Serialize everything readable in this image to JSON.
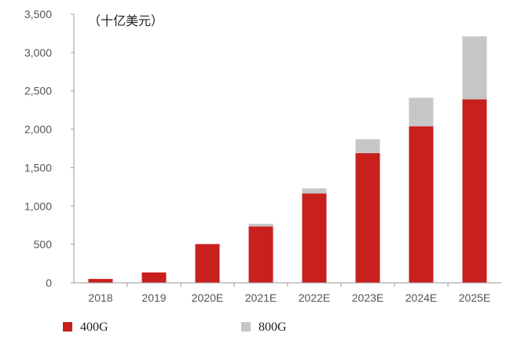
{
  "chart_data": {
    "type": "bar",
    "stacked": true,
    "unit_label": "（十亿美元）",
    "categories": [
      "2018",
      "2019",
      "2020E",
      "2021E",
      "2022E",
      "2023E",
      "2024E",
      "2025E"
    ],
    "series": [
      {
        "name": "400G",
        "color": "#c8201e",
        "values": [
          50,
          135,
          505,
          735,
          1165,
          1690,
          2040,
          2390
        ]
      },
      {
        "name": "800G",
        "color": "#c6c6c6",
        "values": [
          0,
          0,
          0,
          35,
          65,
          180,
          370,
          820
        ]
      }
    ],
    "y_ticks": [
      "0",
      "500",
      "1,000",
      "1,500",
      "2,000",
      "2,500",
      "3,000",
      "3,500"
    ],
    "ylim": [
      0,
      3500
    ],
    "grid": false,
    "legend": "bottom-left"
  }
}
